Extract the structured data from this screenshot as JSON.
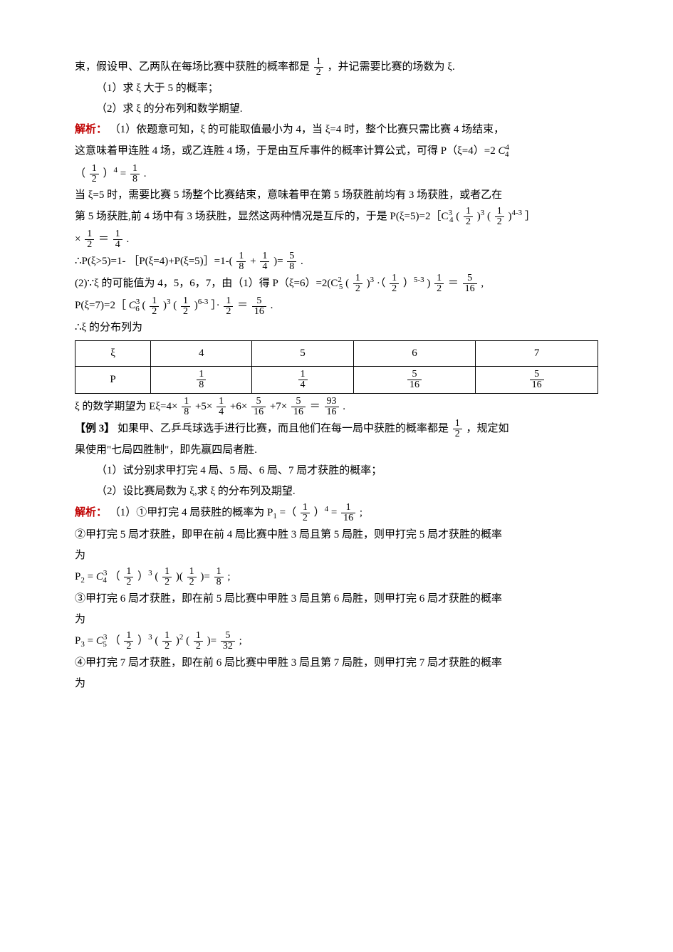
{
  "p1": {
    "l1a": "束，假设甲、乙两队在每场比赛中获胜的概率都是 ",
    "l1b": "，并记需要比赛的场数为 ξ.",
    "half_num": "1",
    "half_den": "2",
    "l2": "（1）求 ξ 大于 5 的概率；",
    "l3": "（2）求 ξ 的分布列和数学期望."
  },
  "sol1": {
    "label": "解析：",
    "l1": "（1）依题意可知，ξ 的可能取值最小为 4，当 ξ=4 时，整个比赛只需比赛 4 场结束，",
    "l2a": "这意味着甲连胜 4 场，或乙连胜 4 场，于是由互斥事件的概率计算公式，可得 P（ξ=4）=2",
    "l2c": " C",
    "c44_u": "4",
    "c44_l": "4",
    "l3a": "（",
    "l3b": "）",
    "exp4": "4",
    "l3c": "=",
    "one8_num": "1",
    "one8_den": "8",
    "l3d": ".",
    "l4": "当 ξ=5 时，需要比赛 5 场整个比赛结束，意味着甲在第 5 场获胜前均有 3 场获胜，或者乙在",
    "l5a": "第 5 场获胜,前 4 场中有 3 场获胜，显然这两种情况是互斥的，于是 P(ξ=5)=2［C",
    "c34_u": "3",
    "c34_l": "4",
    "l5b": "(",
    "l5c": ")",
    "exp3": "3",
    "l5d": "(",
    "l5e": ")",
    "exp43": "4-3",
    "l5f": "］",
    "l6a": "×",
    "l6b": "＝",
    "one4_num": "1",
    "one4_den": "4",
    "l6c": ".",
    "l7a": "∴P(ξ>5)=1- ［P(ξ=4)+P(ξ=5)］=1-(",
    "l7b": "+",
    "l7c": ")=",
    "five8_num": "5",
    "five8_den": "8",
    "l7d": ".",
    "l8a": "(2)∵ξ 的可能值为 4，5，6，7，由（1）得 P（ξ=6）=2(C",
    "c25_u": "2",
    "c25_l": "5",
    "l8b": "(",
    "l8c": ")",
    "l8d": "·（",
    "l8e": "）",
    "exp53": "5-3",
    "l8f": ")",
    "l8g": "＝",
    "five16_num": "5",
    "five16_den": "16",
    "l8h": ",",
    "l9a": "P(ξ=7)=2［",
    "l9c36": " C",
    "c36_u": "3",
    "c36_l": "6",
    "l9b": "(",
    "l9c": ")",
    "l9d": "(",
    "l9e": ")",
    "exp63": "6-3",
    "l9f": "］·",
    "l9g": "＝",
    "l9h": ".",
    "l10": "∴ξ 的分布列为"
  },
  "table": {
    "h0": "ξ",
    "h1": "4",
    "h2": "5",
    "h3": "6",
    "h4": "7",
    "r0": "P",
    "v1n": "1",
    "v1d": "8",
    "v2n": "1",
    "v2d": "4",
    "v3n": "5",
    "v3d": "16",
    "v4n": "5",
    "v4d": "16"
  },
  "exp": {
    "l1a": "ξ 的数学期望为 Eξ=4×",
    "l1b": "+5×",
    "l1c": "+6×",
    "l1d": "+7×",
    "l1e": "＝",
    "r_num": "93",
    "r_den": "16",
    "l1f": "."
  },
  "ex3": {
    "label": "【例 3】",
    "t1a": " 如果甲、乙乒乓球选手进行比赛，而且他们在每一局中获胜的概率都是 ",
    "t1b": "，规定如",
    "t2": "果使用\"七局四胜制\"，即先赢四局者胜.",
    "t3": "（1）试分别求甲打完 4 局、5 局、6 局、7 局才获胜的概率；",
    "t4": "（2）设比赛局数为 ξ,求 ξ 的分布列及期望."
  },
  "sol2": {
    "label": "解析：",
    "l1a": "（1）①甲打完 4 局获胜的概率为 P",
    "p1sub": "1",
    "l1b": "=（",
    "l1c": "）",
    "exp4": "4",
    "l1d": "=",
    "r1n": "1",
    "r1d": "16",
    "l1e": ";",
    "l2": "②甲打完 5 局才获胜，即甲在前 4 局比赛中胜 3 局且第 5 局胜，则甲打完 5 局才获胜的概率",
    "l2b": "为",
    "l3a": "P",
    "p2sub": "2",
    "l3b": "=",
    "l3c34": " C",
    "c34_u": "3",
    "c34_l": "4",
    "l3c": "（",
    "l3d": "）",
    "exp3": "3",
    "l3e": "(",
    "l3f": ")(",
    "l3g": ")=",
    "r2n": "1",
    "r2d": "8",
    "l3h": ";",
    "l4": "③甲打完 6 局才获胜，即在前 5 局比赛中甲胜 3 局且第 6 局胜，则甲打完 6 局才获胜的概率",
    "l4b": "为",
    "l5a": "P",
    "p3sub": "3",
    "l5b": "=",
    "l5c35": " C",
    "c35_u": "3",
    "c35_l": "5",
    "l5c": "（",
    "l5d": "）",
    "l5e": "(",
    "l5f": ")",
    "exp2": "2",
    "l5g": "(",
    "l5h": ")=",
    "r3n": "5",
    "r3d": "32",
    "l5i": ";",
    "l6": "④甲打完 7 局才获胜，即在前 6 局比赛中甲胜 3 局且第 7 局胜，则甲打完 7 局才获胜的概率",
    "l6b": "为"
  },
  "frac_half": {
    "n": "1",
    "d": "2"
  }
}
